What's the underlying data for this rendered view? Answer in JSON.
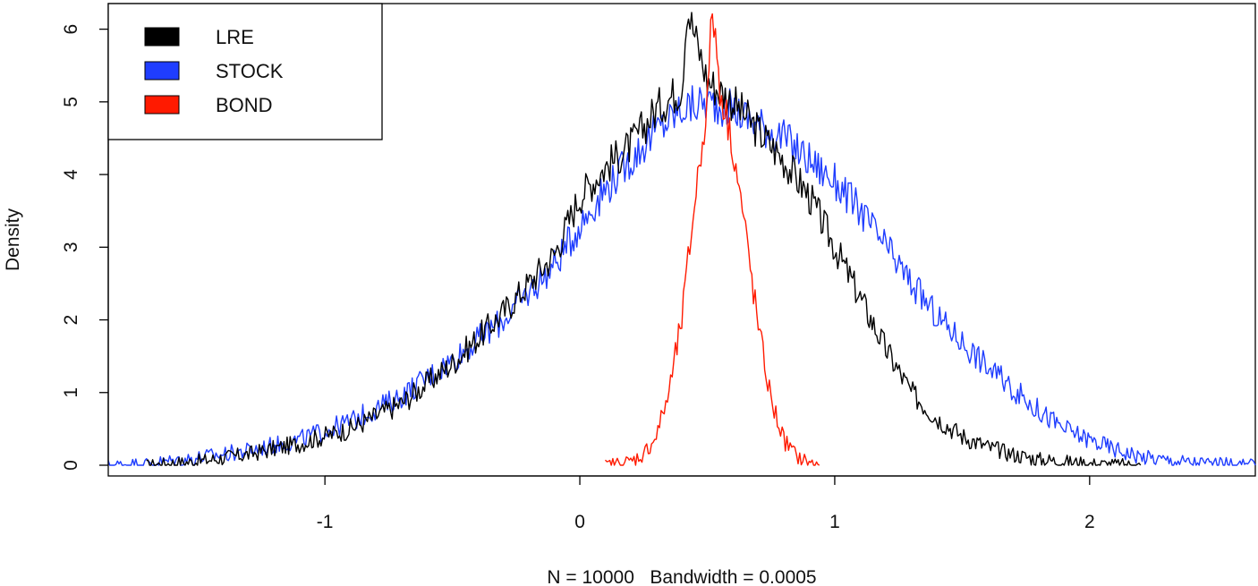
{
  "chart_data": {
    "type": "line",
    "title": "",
    "xlabel": "N = 10000   Bandwidth = 0.0005",
    "ylabel": "Density",
    "xlim": [
      -1.85,
      2.65
    ],
    "ylim": [
      0,
      6.5
    ],
    "x_ticks": [
      -1,
      0,
      1,
      2
    ],
    "y_ticks": [
      0,
      1,
      2,
      3,
      4,
      5,
      6
    ],
    "x_tick_labels": [
      "-1",
      "0",
      "1",
      "2"
    ],
    "y_tick_labels": [
      "0",
      "1",
      "2",
      "3",
      "4",
      "5",
      "6"
    ],
    "grid": false,
    "legend_position": "top-left",
    "series": [
      {
        "name": "LRE",
        "color": "#000000",
        "x": [
          -1.7,
          -1.5,
          -1.3,
          -1.1,
          -0.9,
          -0.7,
          -0.5,
          -0.3,
          -0.1,
          0.0,
          0.1,
          0.2,
          0.3,
          0.4,
          0.42,
          0.5,
          0.6,
          0.7,
          0.8,
          0.9,
          1.0,
          1.1,
          1.2,
          1.3,
          1.4,
          1.5,
          1.6,
          1.7,
          1.8,
          1.9,
          2.0,
          2.1,
          2.2
        ],
        "y": [
          0.0,
          0.05,
          0.15,
          0.3,
          0.5,
          0.85,
          1.4,
          2.1,
          2.9,
          3.7,
          4.1,
          4.4,
          4.9,
          5.2,
          6.3,
          5.3,
          5.0,
          4.6,
          4.2,
          3.7,
          3.0,
          2.3,
          1.6,
          1.0,
          0.65,
          0.4,
          0.25,
          0.15,
          0.08,
          0.05,
          0.02,
          0.01,
          0.0
        ]
      },
      {
        "name": "STOCK",
        "color": "#1f3dff",
        "x": [
          -1.85,
          -1.7,
          -1.5,
          -1.3,
          -1.1,
          -0.9,
          -0.7,
          -0.5,
          -0.3,
          -0.1,
          0.0,
          0.1,
          0.2,
          0.3,
          0.4,
          0.5,
          0.6,
          0.7,
          0.8,
          0.9,
          1.0,
          1.1,
          1.2,
          1.3,
          1.4,
          1.5,
          1.6,
          1.7,
          1.8,
          1.9,
          2.0,
          2.1,
          2.2,
          2.3,
          2.4,
          2.5,
          2.65
        ],
        "y": [
          0.0,
          0.02,
          0.1,
          0.2,
          0.35,
          0.6,
          0.95,
          1.45,
          2.0,
          2.75,
          3.3,
          3.8,
          4.2,
          4.6,
          4.9,
          5.0,
          4.9,
          4.7,
          4.5,
          4.2,
          3.9,
          3.5,
          3.0,
          2.5,
          2.05,
          1.7,
          1.35,
          1.05,
          0.75,
          0.5,
          0.35,
          0.22,
          0.12,
          0.07,
          0.04,
          0.02,
          0.0
        ]
      },
      {
        "name": "BOND",
        "color": "#ff1a00",
        "x": [
          0.1,
          0.2,
          0.25,
          0.3,
          0.35,
          0.4,
          0.45,
          0.5,
          0.52,
          0.55,
          0.6,
          0.65,
          0.7,
          0.75,
          0.8,
          0.85,
          0.9,
          0.94
        ],
        "y": [
          0.0,
          0.05,
          0.15,
          0.4,
          1.0,
          2.0,
          3.6,
          5.0,
          6.3,
          5.2,
          4.4,
          3.2,
          1.9,
          0.9,
          0.35,
          0.12,
          0.03,
          0.0
        ]
      }
    ]
  }
}
